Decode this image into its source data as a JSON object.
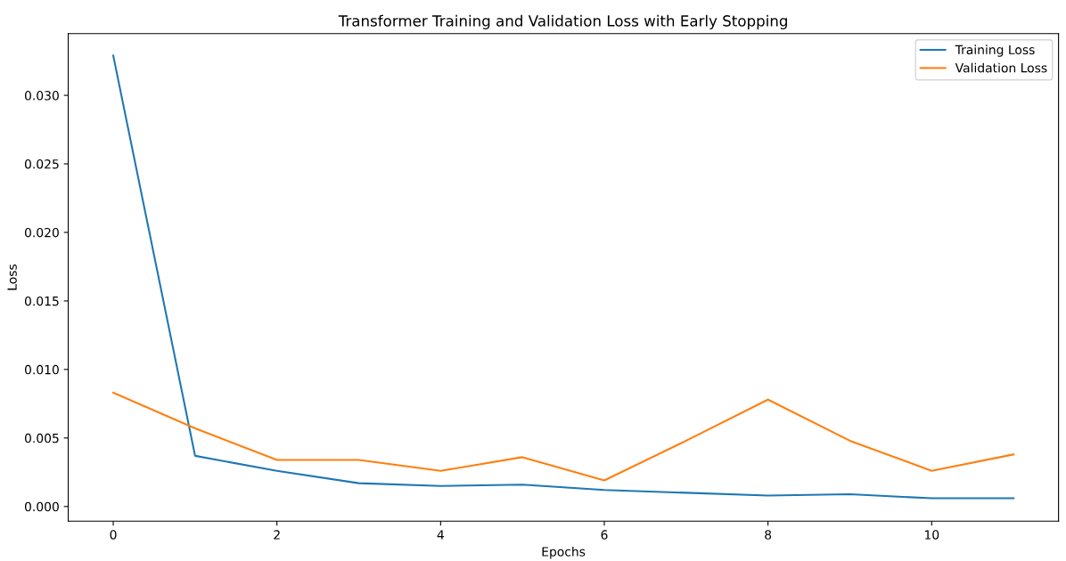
{
  "chart_data": {
    "type": "line",
    "title": "Transformer Training and Validation Loss with Early Stopping",
    "xlabel": "Epochs",
    "ylabel": "Loss",
    "x": [
      0,
      1,
      2,
      3,
      4,
      5,
      6,
      7,
      8,
      9,
      10,
      11
    ],
    "series": [
      {
        "name": "Training Loss",
        "color": "#1f77b4",
        "values": [
          0.0329,
          0.0037,
          0.0026,
          0.0017,
          0.0015,
          0.0016,
          0.0012,
          0.001,
          0.0008,
          0.0009,
          0.0006,
          0.0006
        ]
      },
      {
        "name": "Validation Loss",
        "color": "#ff7f0e",
        "values": [
          0.0083,
          0.0057,
          0.0034,
          0.0034,
          0.0026,
          0.0036,
          0.0019,
          0.0048,
          0.0078,
          0.0048,
          0.0026,
          0.0038
        ]
      }
    ],
    "xlim": [
      -0.55,
      11.55
    ],
    "xticks": [
      0,
      2,
      4,
      6,
      8,
      10
    ],
    "ylim": [
      -0.00107,
      0.0345
    ],
    "yticks": [
      {
        "value": 0,
        "label": "0.000"
      },
      {
        "value": 0.005,
        "label": "0.005"
      },
      {
        "value": 0.01,
        "label": "0.010"
      },
      {
        "value": 0.015,
        "label": "0.015"
      },
      {
        "value": 0.02,
        "label": "0.020"
      },
      {
        "value": 0.025,
        "label": "0.025"
      },
      {
        "value": 0.03,
        "label": "0.030"
      }
    ],
    "legend": "top right",
    "grid": false,
    "marker": "none",
    "line_style": "solid"
  }
}
